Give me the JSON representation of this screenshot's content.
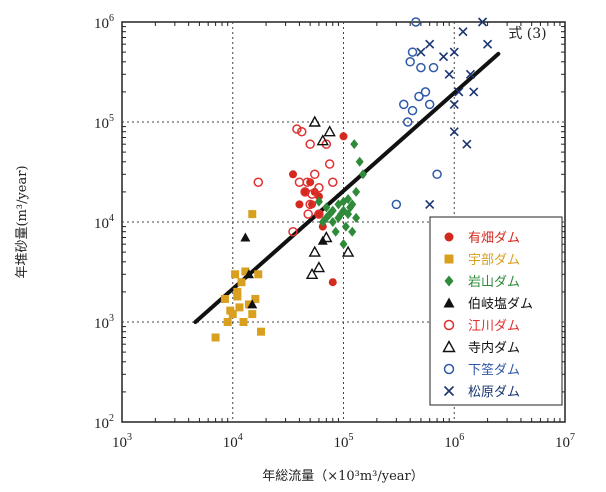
{
  "chart_data": {
    "type": "scatter",
    "scale": "log-log",
    "grid": true,
    "legend_position": "bottom-right",
    "xlabel": "年総流量（×10³m³/year）",
    "ylabel": "年堆砂量(m³/year)",
    "x_ticks": [
      {
        "value": 1000,
        "base": "10",
        "exp": "3"
      },
      {
        "value": 10000,
        "base": "10",
        "exp": "4"
      },
      {
        "value": 100000,
        "base": "10",
        "exp": "5"
      },
      {
        "value": 1000000,
        "base": "10",
        "exp": "6"
      },
      {
        "value": 10000000,
        "base": "10",
        "exp": "7"
      }
    ],
    "y_ticks": [
      {
        "value": 100,
        "base": "10",
        "exp": "2"
      },
      {
        "value": 1000,
        "base": "10",
        "exp": "3"
      },
      {
        "value": 10000,
        "base": "10",
        "exp": "4"
      },
      {
        "value": 100000,
        "base": "10",
        "exp": "5"
      },
      {
        "value": 1000000,
        "base": "10",
        "exp": "6"
      }
    ],
    "xlim": [
      1000,
      10000000
    ],
    "ylim": [
      100,
      1000000
    ],
    "fit_line": {
      "label": "式 (3)",
      "x": [
        4600,
        2500000
      ],
      "y": [
        1000,
        480000
      ]
    },
    "series": [
      {
        "name": "有畑ダム",
        "color": "#d42a1e",
        "marker": "filled-circle",
        "points": [
          [
            35000,
            30000
          ],
          [
            50000,
            25000
          ],
          [
            60000,
            18000
          ],
          [
            100000,
            72000
          ],
          [
            80000,
            2500
          ],
          [
            45000,
            20000
          ],
          [
            55000,
            20000
          ],
          [
            40000,
            15000
          ],
          [
            60000,
            12000
          ],
          [
            52000,
            15000
          ],
          [
            65000,
            9000
          ]
        ]
      },
      {
        "name": "宇部ダム",
        "color": "#d9a020",
        "marker": "filled-square",
        "points": [
          [
            7000,
            700
          ],
          [
            9000,
            1000
          ],
          [
            10000,
            1200
          ],
          [
            11000,
            2000
          ],
          [
            12000,
            2500
          ],
          [
            14000,
            1500
          ],
          [
            18000,
            800
          ],
          [
            10500,
            3000
          ],
          [
            13000,
            3200
          ],
          [
            11500,
            1400
          ],
          [
            16000,
            1700
          ],
          [
            8500,
            1700
          ],
          [
            17000,
            3000
          ],
          [
            15000,
            1200
          ],
          [
            12500,
            1000
          ],
          [
            9500,
            1300
          ],
          [
            15000,
            12000
          ],
          [
            11000,
            1800
          ]
        ]
      },
      {
        "name": "岩山ダム",
        "color": "#2f8a3a",
        "marker": "filled-diamond",
        "points": [
          [
            70000,
            11000
          ],
          [
            80000,
            10000
          ],
          [
            90000,
            15000
          ],
          [
            100000,
            13000
          ],
          [
            110000,
            17000
          ],
          [
            120000,
            15000
          ],
          [
            130000,
            20000
          ],
          [
            75000,
            12000
          ],
          [
            95000,
            12000
          ],
          [
            105000,
            9000
          ],
          [
            140000,
            40000
          ],
          [
            85000,
            8000
          ],
          [
            115000,
            14000
          ],
          [
            125000,
            60000
          ],
          [
            100000,
            6000
          ],
          [
            90000,
            11000
          ],
          [
            110000,
            12000
          ],
          [
            150000,
            30000
          ],
          [
            70000,
            14000
          ],
          [
            80000,
            13000
          ],
          [
            60000,
            16000
          ],
          [
            130000,
            11000
          ],
          [
            100000,
            16000
          ],
          [
            120000,
            8000
          ],
          [
            65000,
            10000
          ]
        ]
      },
      {
        "name": "伯岐塩ダム",
        "color": "#111111",
        "marker": "filled-triangle",
        "points": [
          [
            13000,
            7000
          ],
          [
            14000,
            3000
          ],
          [
            15000,
            1500
          ],
          [
            65000,
            6500
          ]
        ]
      },
      {
        "name": "江川ダム",
        "color": "#e03030",
        "marker": "open-circle",
        "points": [
          [
            38000,
            85000
          ],
          [
            42000,
            80000
          ],
          [
            45000,
            20000
          ],
          [
            50000,
            60000
          ],
          [
            55000,
            30000
          ],
          [
            60000,
            22000
          ],
          [
            75000,
            38000
          ],
          [
            80000,
            25000
          ],
          [
            40000,
            25000
          ],
          [
            50000,
            15000
          ],
          [
            48000,
            12000
          ],
          [
            35000,
            8000
          ],
          [
            70000,
            60000
          ],
          [
            60000,
            12000
          ],
          [
            52000,
            19000
          ],
          [
            47000,
            25000
          ],
          [
            17000,
            25000
          ]
        ]
      },
      {
        "name": "寺内ダム",
        "color": "#111111",
        "marker": "open-triangle",
        "points": [
          [
            55000,
            100000
          ],
          [
            65000,
            65000
          ],
          [
            60000,
            3500
          ],
          [
            55000,
            5000
          ],
          [
            52000,
            3000
          ],
          [
            70000,
            7000
          ],
          [
            110000,
            5000
          ],
          [
            75000,
            80000
          ]
        ]
      },
      {
        "name": "下筌ダム",
        "color": "#2f5aa8",
        "marker": "open-circle",
        "points": [
          [
            400000,
            400000
          ],
          [
            420000,
            500000
          ],
          [
            450000,
            1000000
          ],
          [
            500000,
            350000
          ],
          [
            550000,
            200000
          ],
          [
            600000,
            150000
          ],
          [
            650000,
            350000
          ],
          [
            380000,
            100000
          ],
          [
            420000,
            130000
          ],
          [
            700000,
            30000
          ],
          [
            300000,
            15000
          ],
          [
            350000,
            150000
          ],
          [
            480000,
            180000
          ]
        ]
      },
      {
        "name": "松原ダム",
        "color": "#1a3570",
        "marker": "cross",
        "points": [
          [
            500000,
            500000
          ],
          [
            600000,
            600000
          ],
          [
            800000,
            450000
          ],
          [
            900000,
            300000
          ],
          [
            1000000,
            500000
          ],
          [
            1100000,
            200000
          ],
          [
            1200000,
            800000
          ],
          [
            1400000,
            300000
          ],
          [
            1000000,
            150000
          ],
          [
            1300000,
            60000
          ],
          [
            1500000,
            200000
          ],
          [
            1000000,
            80000
          ],
          [
            1800000,
            1000000
          ],
          [
            600000,
            15000
          ],
          [
            2000000,
            600000
          ]
        ]
      }
    ]
  }
}
